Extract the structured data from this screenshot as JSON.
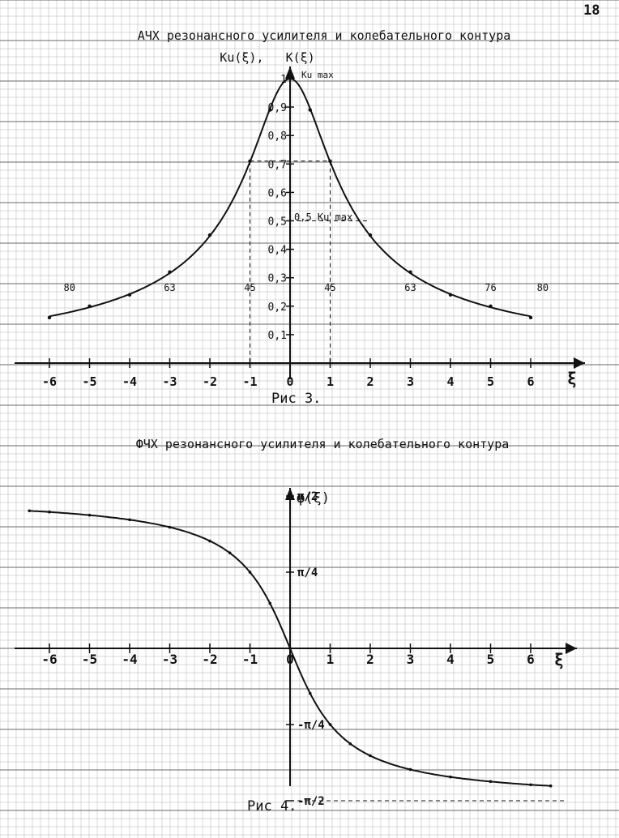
{
  "page_number": "18",
  "colors": {
    "ink": "#111111",
    "grid_minor": "#b5b5b5",
    "grid_major": "#6a6a6a",
    "paper": "#ffffff"
  },
  "chart_data": [
    {
      "type": "line",
      "title": "АЧХ резонансного усилителя и колебательного контура",
      "ylabel": "Ku(ξ),   K(ξ)",
      "xlabel": "ξ",
      "kmax_label": "Ku max",
      "half_label": "0,5 Ku max",
      "caption": "Рис 3.",
      "xlim": [
        -6,
        6
      ],
      "ylim": [
        0,
        1
      ],
      "x_ticks": [
        -6,
        -5,
        -4,
        -3,
        -2,
        -1,
        0,
        1,
        2,
        3,
        4,
        5,
        6
      ],
      "x_tick_labels": [
        "-6",
        "-5",
        "-4",
        "-3",
        "-2",
        "-1",
        "0",
        "1",
        "2",
        "3",
        "4",
        "5",
        "6"
      ],
      "y_ticks": [
        0.1,
        0.2,
        0.3,
        0.4,
        0.5,
        0.6,
        0.7,
        0.8,
        0.9,
        1
      ],
      "y_tick_labels": [
        "0,1",
        "0,2",
        "0,3",
        "0,4",
        "0,5",
        "0,6",
        "0,7",
        "0,8",
        "0,9",
        "1"
      ],
      "angle_labels": [
        {
          "x": -5.5,
          "text": "80"
        },
        {
          "x": -3,
          "text": "63"
        },
        {
          "x": -1,
          "text": "45"
        },
        {
          "x": 1,
          "text": "45"
        },
        {
          "x": 3,
          "text": "63"
        },
        {
          "x": 5,
          "text": "76"
        },
        {
          "x": 6.3,
          "text": "80"
        }
      ],
      "series": [
        {
          "x": [
            -6,
            -5,
            -4,
            -3,
            -2,
            -1,
            -0.5,
            0,
            0.5,
            1,
            2,
            3,
            4,
            5,
            6
          ],
          "values": [
            0.16,
            0.2,
            0.24,
            0.32,
            0.45,
            0.71,
            0.89,
            1.0,
            0.89,
            0.71,
            0.45,
            0.32,
            0.24,
            0.2,
            0.16
          ]
        }
      ]
    },
    {
      "type": "line",
      "title": "ФЧХ резонансного усилителя и колебательного контура",
      "ylabel": "φ(ξ)",
      "xlabel": "ξ",
      "caption": "Рис 4.",
      "xlim": [
        -6,
        6
      ],
      "ylim": [
        -1.5708,
        1.5708
      ],
      "x_ticks": [
        -6,
        -5,
        -4,
        -3,
        -2,
        -1,
        0,
        1,
        2,
        3,
        4,
        5,
        6
      ],
      "x_tick_labels": [
        "-6",
        "-5",
        "-4",
        "-3",
        "-2",
        "-1",
        "0",
        "1",
        "2",
        "3",
        "4",
        "5",
        "6"
      ],
      "y_ticks": [
        1.5708,
        0.7854,
        -0.7854,
        -1.5708
      ],
      "y_tick_labels": [
        "π/2",
        "π/4",
        "π/4",
        "-π/2"
      ],
      "y_tick_prefix": [
        "",
        "",
        "-",
        ""
      ],
      "series": [
        {
          "x": [
            -6.5,
            -6,
            -5,
            -4,
            -3,
            -2,
            -1.5,
            -1,
            -0.5,
            0,
            0.5,
            1,
            1.5,
            2,
            3,
            4,
            5,
            6,
            6.5
          ],
          "values": [
            1.418,
            1.406,
            1.373,
            1.326,
            1.249,
            1.107,
            0.983,
            0.785,
            0.464,
            0,
            -0.464,
            -0.785,
            -0.983,
            -1.107,
            -1.249,
            -1.326,
            -1.373,
            -1.406,
            -1.418
          ]
        }
      ]
    }
  ]
}
